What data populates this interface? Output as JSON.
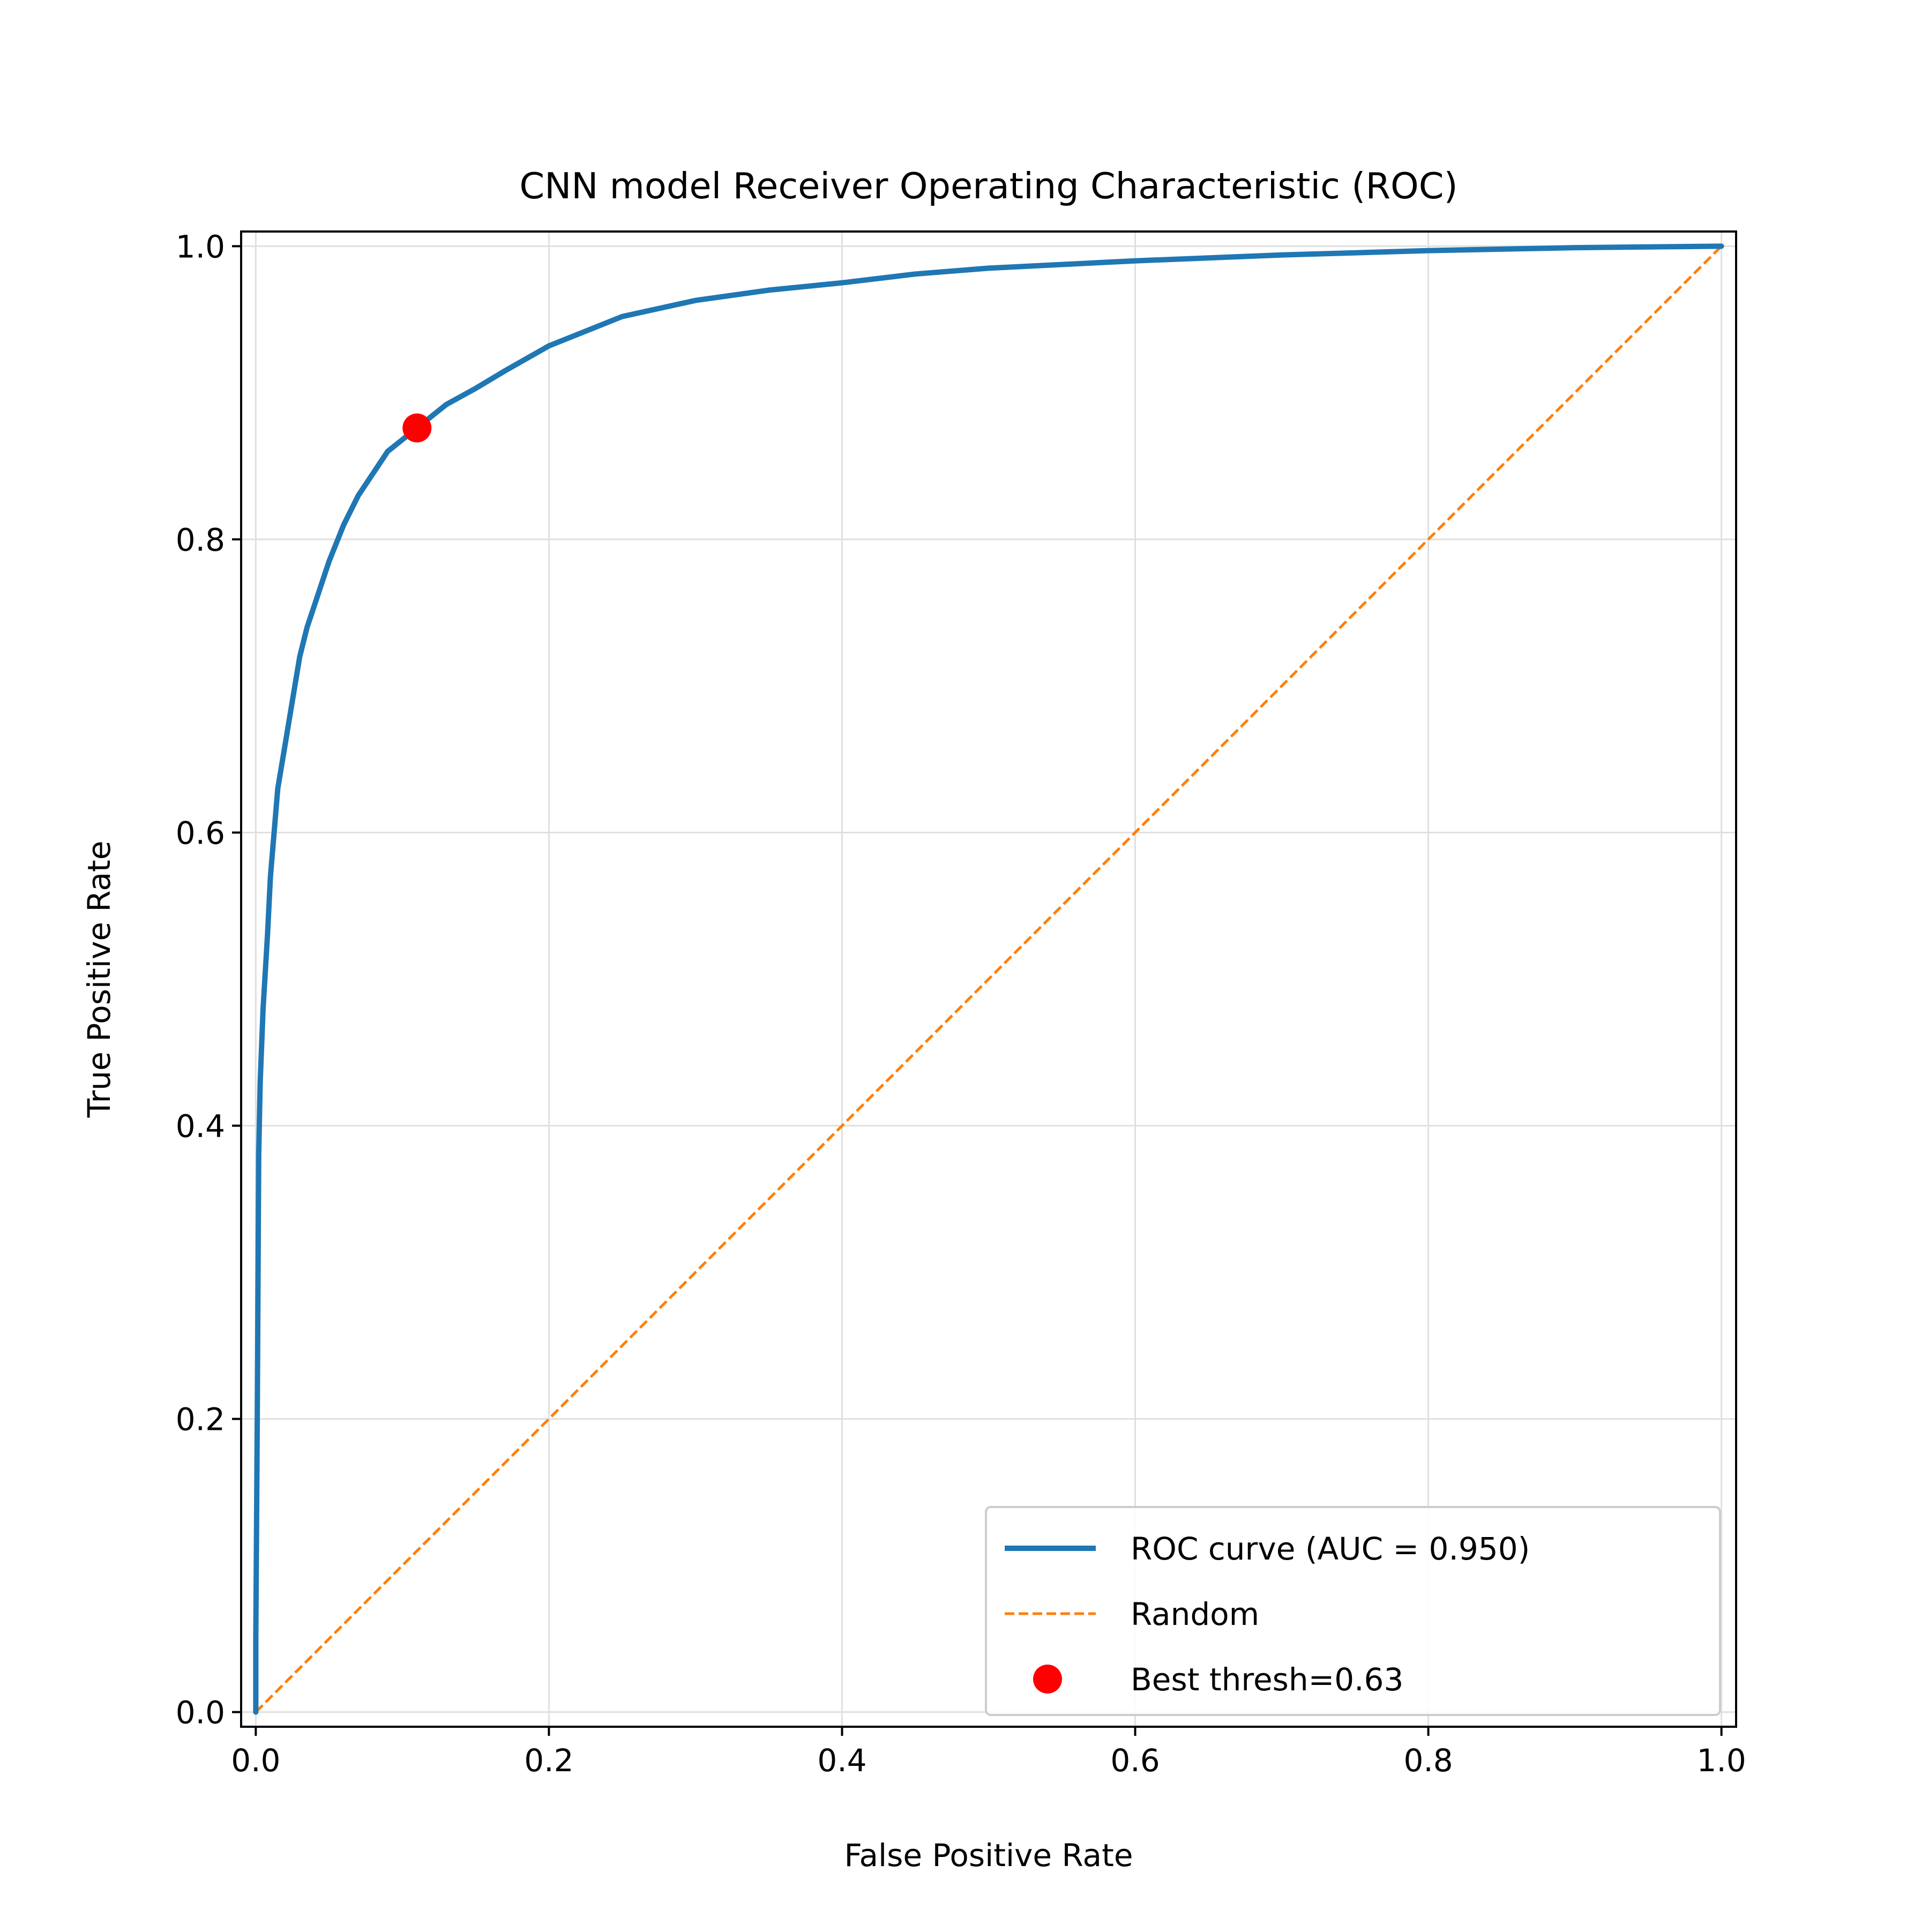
{
  "chart_data": {
    "type": "line",
    "title": "CNN model Receiver Operating Characteristic (ROC)",
    "xlabel": "False Positive Rate",
    "ylabel": "True Positive Rate",
    "xlim": [
      -0.01,
      1.01
    ],
    "ylim": [
      -0.01,
      1.01
    ],
    "xticks": [
      "0.0",
      "0.2",
      "0.4",
      "0.6",
      "0.8",
      "1.0"
    ],
    "yticks": [
      "0.0",
      "0.2",
      "0.4",
      "0.6",
      "0.8",
      "1.0"
    ],
    "grid": true,
    "legend_position": "lower right",
    "series": [
      {
        "name": "ROC curve (AUC = 0.950)",
        "kind": "line",
        "color": "#1f77b4",
        "x": [
          0.0,
          0.0,
          0.001,
          0.002,
          0.003,
          0.005,
          0.008,
          0.01,
          0.015,
          0.02,
          0.025,
          0.03,
          0.035,
          0.04,
          0.045,
          0.05,
          0.06,
          0.07,
          0.08,
          0.09,
          0.1,
          0.11,
          0.12,
          0.13,
          0.15,
          0.17,
          0.2,
          0.25,
          0.3,
          0.35,
          0.4,
          0.45,
          0.5,
          0.6,
          0.7,
          0.8,
          0.9,
          1.0
        ],
        "y": [
          0.0,
          0.05,
          0.2,
          0.38,
          0.43,
          0.48,
          0.53,
          0.57,
          0.63,
          0.66,
          0.69,
          0.72,
          0.74,
          0.755,
          0.77,
          0.785,
          0.81,
          0.83,
          0.845,
          0.86,
          0.868,
          0.876,
          0.884,
          0.892,
          0.903,
          0.915,
          0.932,
          0.952,
          0.963,
          0.97,
          0.975,
          0.981,
          0.985,
          0.99,
          0.994,
          0.997,
          0.999,
          1.0
        ]
      },
      {
        "name": "Random",
        "kind": "dashed-line",
        "color": "#ff7f0e",
        "x": [
          0.0,
          1.0
        ],
        "y": [
          0.0,
          1.0
        ]
      },
      {
        "name": "Best thresh=0.63",
        "kind": "scatter",
        "color": "#ff0000",
        "x": [
          0.11
        ],
        "y": [
          0.876
        ]
      }
    ]
  }
}
